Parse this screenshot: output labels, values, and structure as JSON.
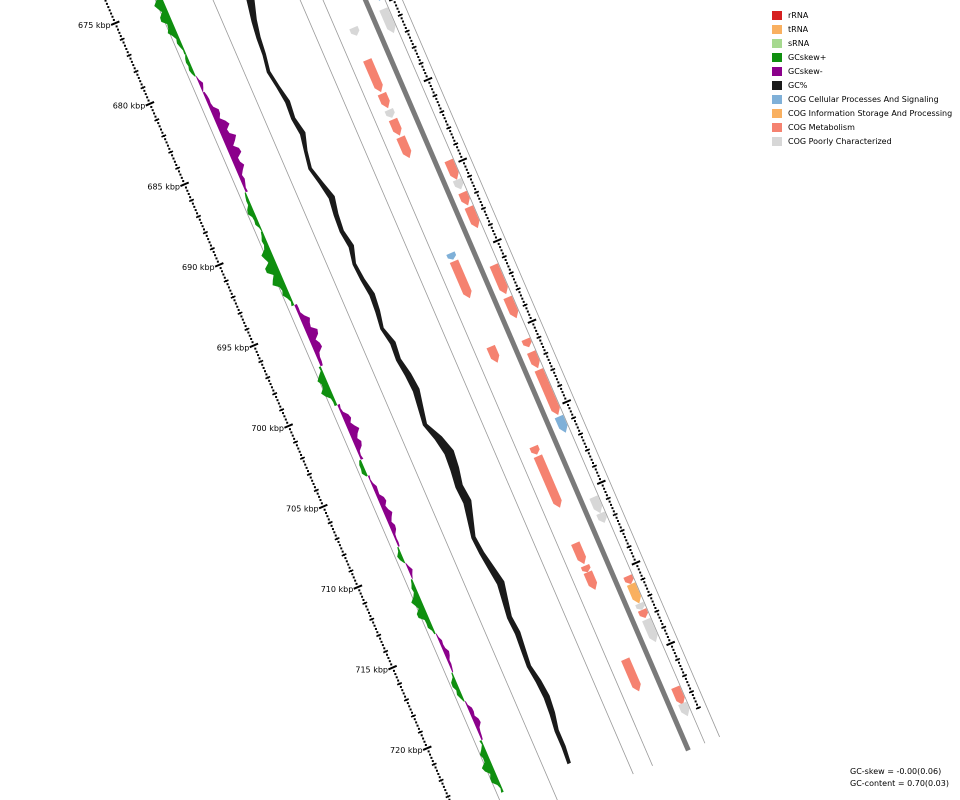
{
  "legend": [
    {
      "label": "rRNA",
      "color": "#d62020"
    },
    {
      "label": "tRNA",
      "color": "#f9b060"
    },
    {
      "label": "sRNA",
      "color": "#a6d98f"
    },
    {
      "label": "GCskew+",
      "color": "#0f8f0f"
    },
    {
      "label": "GCskew-",
      "color": "#8b008b"
    },
    {
      "label": "GC%",
      "color": "#1a1a1a"
    },
    {
      "label": "COG Cellular Processes And Signaling",
      "color": "#7fb0d8"
    },
    {
      "label": "COG Information Storage And Processing",
      "color": "#f9b060"
    },
    {
      "label": "COG Metabolism",
      "color": "#f58270"
    },
    {
      "label": "COG Poorly Characterized",
      "color": "#d7d7d7"
    }
  ],
  "ticks": [
    {
      "label": "675 kbp",
      "kbp": 675
    },
    {
      "label": "680 kbp",
      "kbp": 680
    },
    {
      "label": "685 kbp",
      "kbp": 685
    },
    {
      "label": "690 kbp",
      "kbp": 690
    },
    {
      "label": "695 kbp",
      "kbp": 695
    },
    {
      "label": "700 kbp",
      "kbp": 700
    },
    {
      "label": "705 kbp",
      "kbp": 705
    },
    {
      "label": "710 kbp",
      "kbp": 710
    },
    {
      "label": "715 kbp",
      "kbp": 715
    },
    {
      "label": "720 kbp",
      "kbp": 720
    }
  ],
  "stats": {
    "gc_skew": "GC-skew = -0.00(0.06)",
    "gc_content": "GC-content = 0.70(0.03)"
  },
  "gcskew_segments": [
    {
      "start": 673.0,
      "end": 678.2,
      "sign": "+",
      "amp": 0.8
    },
    {
      "start": 678.2,
      "end": 679.6,
      "sign": "+",
      "amp": 0.4
    },
    {
      "start": 679.6,
      "end": 680.6,
      "sign": "-",
      "amp": 0.3
    },
    {
      "start": 680.6,
      "end": 686.8,
      "sign": "-",
      "amp": 1.0
    },
    {
      "start": 686.8,
      "end": 689.2,
      "sign": "+",
      "amp": 0.5
    },
    {
      "start": 689.2,
      "end": 693.8,
      "sign": "+",
      "amp": 1.0
    },
    {
      "start": 693.8,
      "end": 697.6,
      "sign": "-",
      "amp": 0.9
    },
    {
      "start": 697.6,
      "end": 700.0,
      "sign": "+",
      "amp": 0.8
    },
    {
      "start": 700.0,
      "end": 703.4,
      "sign": "-",
      "amp": 0.8
    },
    {
      "start": 703.4,
      "end": 704.4,
      "sign": "+",
      "amp": 0.5
    },
    {
      "start": 704.4,
      "end": 708.8,
      "sign": "-",
      "amp": 0.6
    },
    {
      "start": 708.8,
      "end": 709.8,
      "sign": "+",
      "amp": 0.4
    },
    {
      "start": 709.8,
      "end": 710.8,
      "sign": "-",
      "amp": 0.3
    },
    {
      "start": 710.8,
      "end": 714.2,
      "sign": "+",
      "amp": 0.8
    },
    {
      "start": 714.2,
      "end": 716.6,
      "sign": "-",
      "amp": 0.4
    },
    {
      "start": 716.6,
      "end": 718.4,
      "sign": "+",
      "amp": 0.5
    },
    {
      "start": 718.4,
      "end": 720.8,
      "sign": "-",
      "amp": 0.5
    },
    {
      "start": 720.8,
      "end": 724.0,
      "sign": "+",
      "amp": 0.8
    }
  ],
  "gc_content_profile": [
    {
      "kbp": 673.0,
      "dev": 0.2
    },
    {
      "kbp": 674.0,
      "dev": 0.5
    },
    {
      "kbp": 675.0,
      "dev": 0.8
    },
    {
      "kbp": 676.0,
      "dev": 1.0
    },
    {
      "kbp": 677.0,
      "dev": 0.7
    },
    {
      "kbp": 678.0,
      "dev": 0.4
    },
    {
      "kbp": 679.0,
      "dev": 0.2
    },
    {
      "kbp": 680.0,
      "dev": 0.1
    },
    {
      "kbp": 681.0,
      "dev": -0.1
    },
    {
      "kbp": 682.0,
      "dev": 0.1
    },
    {
      "kbp": 683.0,
      "dev": 0.3
    },
    {
      "kbp": 684.0,
      "dev": 0.2
    },
    {
      "kbp": 685.0,
      "dev": 0.4
    },
    {
      "kbp": 686.0,
      "dev": 0.1
    },
    {
      "kbp": 687.0,
      "dev": -0.1
    },
    {
      "kbp": 688.0,
      "dev": 0.2
    },
    {
      "kbp": 689.0,
      "dev": 0.5
    },
    {
      "kbp": 690.0,
      "dev": 0.3
    },
    {
      "kbp": 691.0,
      "dev": 0.2
    },
    {
      "kbp": 692.0,
      "dev": 0.4
    },
    {
      "kbp": 693.0,
      "dev": 0.1
    },
    {
      "kbp": 694.0,
      "dev": 0.2
    },
    {
      "kbp": 695.0,
      "dev": 0.4
    },
    {
      "kbp": 696.0,
      "dev": 0.3
    },
    {
      "kbp": 697.0,
      "dev": 0.1
    },
    {
      "kbp": 698.0,
      "dev": 0.4
    },
    {
      "kbp": 699.0,
      "dev": 0.3
    },
    {
      "kbp": 700.0,
      "dev": 0.5
    },
    {
      "kbp": 701.0,
      "dev": 0.6
    },
    {
      "kbp": 702.0,
      "dev": 0.4
    },
    {
      "kbp": 703.0,
      "dev": 0.2
    },
    {
      "kbp": 704.0,
      "dev": 0.7
    },
    {
      "kbp": 705.0,
      "dev": 1.0
    },
    {
      "kbp": 706.0,
      "dev": 0.9
    },
    {
      "kbp": 707.0,
      "dev": 0.7
    },
    {
      "kbp": 708.0,
      "dev": 0.8
    },
    {
      "kbp": 709.0,
      "dev": 0.5
    },
    {
      "kbp": 710.0,
      "dev": 0.2
    },
    {
      "kbp": 711.0,
      "dev": 0.3
    },
    {
      "kbp": 712.0,
      "dev": 0.5
    },
    {
      "kbp": 713.0,
      "dev": 0.7
    },
    {
      "kbp": 714.0,
      "dev": 0.5
    },
    {
      "kbp": 715.0,
      "dev": 0.3
    },
    {
      "kbp": 716.0,
      "dev": 0.4
    },
    {
      "kbp": 717.0,
      "dev": 0.3
    },
    {
      "kbp": 718.0,
      "dev": 0.2
    },
    {
      "kbp": 719.0,
      "dev": 0.4
    },
    {
      "kbp": 720.0,
      "dev": 0.5
    },
    {
      "kbp": 721.0,
      "dev": 0.4
    },
    {
      "kbp": 722.0,
      "dev": 0.2
    },
    {
      "kbp": 723.0,
      "dev": 0.2
    },
    {
      "kbp": 724.0,
      "dev": 0.1
    }
  ],
  "genes": [
    {
      "start": 673.0,
      "end": 674.2,
      "strand": "inner",
      "cog": "metabolism"
    },
    {
      "start": 673.6,
      "end": 674.4,
      "strand": "outer",
      "cog": "information"
    },
    {
      "start": 674.8,
      "end": 675.5,
      "strand": "inner",
      "cog": "poorly"
    },
    {
      "start": 675.6,
      "end": 676.2,
      "strand": "outer",
      "cog": "poorly"
    },
    {
      "start": 676.3,
      "end": 677.2,
      "strand": "outer",
      "cog": "information"
    },
    {
      "start": 677.1,
      "end": 678.9,
      "strand": "outer",
      "cog": "metabolism"
    },
    {
      "start": 679.0,
      "end": 679.8,
      "strand": "outer",
      "cog": "cellular"
    },
    {
      "start": 680.6,
      "end": 681.1,
      "strand": "inner",
      "cog": "poorly"
    },
    {
      "start": 680.3,
      "end": 681.8,
      "strand": "outer",
      "cog": "poorly"
    },
    {
      "start": 682.6,
      "end": 684.6,
      "strand": "inner",
      "cog": "metabolism"
    },
    {
      "start": 684.7,
      "end": 685.6,
      "strand": "inner",
      "cog": "metabolism"
    },
    {
      "start": 685.7,
      "end": 686.2,
      "strand": "inner",
      "cog": "poorly"
    },
    {
      "start": 686.3,
      "end": 687.3,
      "strand": "inner",
      "cog": "metabolism"
    },
    {
      "start": 687.4,
      "end": 688.7,
      "strand": "inner",
      "cog": "metabolism"
    },
    {
      "start": 689.7,
      "end": 690.9,
      "strand": "outer",
      "cog": "metabolism"
    },
    {
      "start": 690.9,
      "end": 691.5,
      "strand": "outer",
      "cog": "poorly"
    },
    {
      "start": 691.7,
      "end": 692.5,
      "strand": "outer",
      "cog": "metabolism"
    },
    {
      "start": 692.6,
      "end": 693.9,
      "strand": "outer",
      "cog": "metabolism"
    },
    {
      "start": 694.6,
      "end": 695.0,
      "strand": "inner",
      "cog": "cellular"
    },
    {
      "start": 695.1,
      "end": 697.4,
      "strand": "inner",
      "cog": "metabolism"
    },
    {
      "start": 696.2,
      "end": 698.0,
      "strand": "outer",
      "cog": "metabolism"
    },
    {
      "start": 698.2,
      "end": 699.5,
      "strand": "outer",
      "cog": "metabolism"
    },
    {
      "start": 700.4,
      "end": 701.4,
      "strand": "inner",
      "cog": "metabolism"
    },
    {
      "start": 700.8,
      "end": 701.3,
      "strand": "outer",
      "cog": "metabolism"
    },
    {
      "start": 701.6,
      "end": 702.6,
      "strand": "outer",
      "cog": "metabolism"
    },
    {
      "start": 702.7,
      "end": 705.5,
      "strand": "outer",
      "cog": "metabolism"
    },
    {
      "start": 705.6,
      "end": 706.6,
      "strand": "outer",
      "cog": "cellular"
    },
    {
      "start": 706.6,
      "end": 707.1,
      "strand": "inner",
      "cog": "metabolism"
    },
    {
      "start": 707.2,
      "end": 710.4,
      "strand": "inner",
      "cog": "metabolism"
    },
    {
      "start": 710.6,
      "end": 711.6,
      "strand": "outer",
      "cog": "poorly"
    },
    {
      "start": 711.6,
      "end": 712.2,
      "strand": "outer",
      "cog": "poorly"
    },
    {
      "start": 712.6,
      "end": 713.9,
      "strand": "inner",
      "cog": "metabolism"
    },
    {
      "start": 714.0,
      "end": 714.4,
      "strand": "inner",
      "cog": "metabolism"
    },
    {
      "start": 714.4,
      "end": 715.5,
      "strand": "inner",
      "cog": "metabolism"
    },
    {
      "start": 715.5,
      "end": 716.0,
      "strand": "outer",
      "cog": "metabolism"
    },
    {
      "start": 716.0,
      "end": 717.2,
      "strand": "outer",
      "cog": "information"
    },
    {
      "start": 717.2,
      "end": 717.6,
      "strand": "outer",
      "cog": "poorly"
    },
    {
      "start": 717.6,
      "end": 718.1,
      "strand": "outer",
      "cog": "metabolism"
    },
    {
      "start": 718.2,
      "end": 719.6,
      "strand": "outer",
      "cog": "poorly"
    },
    {
      "start": 719.8,
      "end": 721.8,
      "strand": "inner",
      "cog": "metabolism"
    },
    {
      "start": 722.4,
      "end": 723.5,
      "strand": "outer",
      "cog": "metabolism"
    },
    {
      "start": 723.4,
      "end": 724.2,
      "strand": "outer",
      "cog": "poorly"
    }
  ]
}
